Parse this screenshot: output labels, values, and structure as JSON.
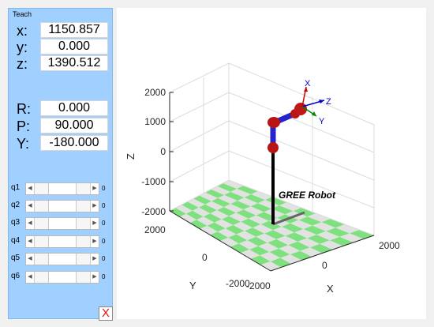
{
  "panel": {
    "title": "Teach",
    "position": [
      {
        "label": "x:",
        "value": "1150.857"
      },
      {
        "label": "y:",
        "value": "0.000"
      },
      {
        "label": "z:",
        "value": "1390.512"
      }
    ],
    "orientation": [
      {
        "label": "R:",
        "value": "0.000"
      },
      {
        "label": "P:",
        "value": "90.000"
      },
      {
        "label": "Y:",
        "value": "-180.000"
      }
    ],
    "joints": [
      {
        "label": "q1",
        "value": "0",
        "level": 0.5
      },
      {
        "label": "q2",
        "value": "0",
        "level": 0.5
      },
      {
        "label": "q3",
        "value": "0",
        "level": 0.5
      },
      {
        "label": "q4",
        "value": "0",
        "level": 0.5
      },
      {
        "label": "q5",
        "value": "0",
        "level": 0.5
      },
      {
        "label": "q6",
        "value": "0",
        "level": 0.5
      }
    ],
    "close_label": "X"
  },
  "plot": {
    "robot_label": "GREE Robot",
    "axis_labels": {
      "x": "X",
      "y": "Y",
      "z": "Z"
    },
    "z_ticks": [
      "2000",
      "1000",
      "0",
      "-1000",
      "-2000"
    ],
    "y_ticks": [
      "2000",
      "0",
      "-2000"
    ],
    "x_ticks": [
      "-2000",
      "0",
      "2000"
    ],
    "frame_labels": {
      "x": "X",
      "y": "Y",
      "z": "Z"
    },
    "colors": {
      "floor_green": "#7fe07f",
      "floor_light": "#e2e2e2",
      "link_blue": "#2424c8",
      "joint_red": "#b81414",
      "base_black": "#000000",
      "frame_x": "#cc0000",
      "frame_y": "#008800",
      "frame_z": "#0000cc"
    }
  }
}
